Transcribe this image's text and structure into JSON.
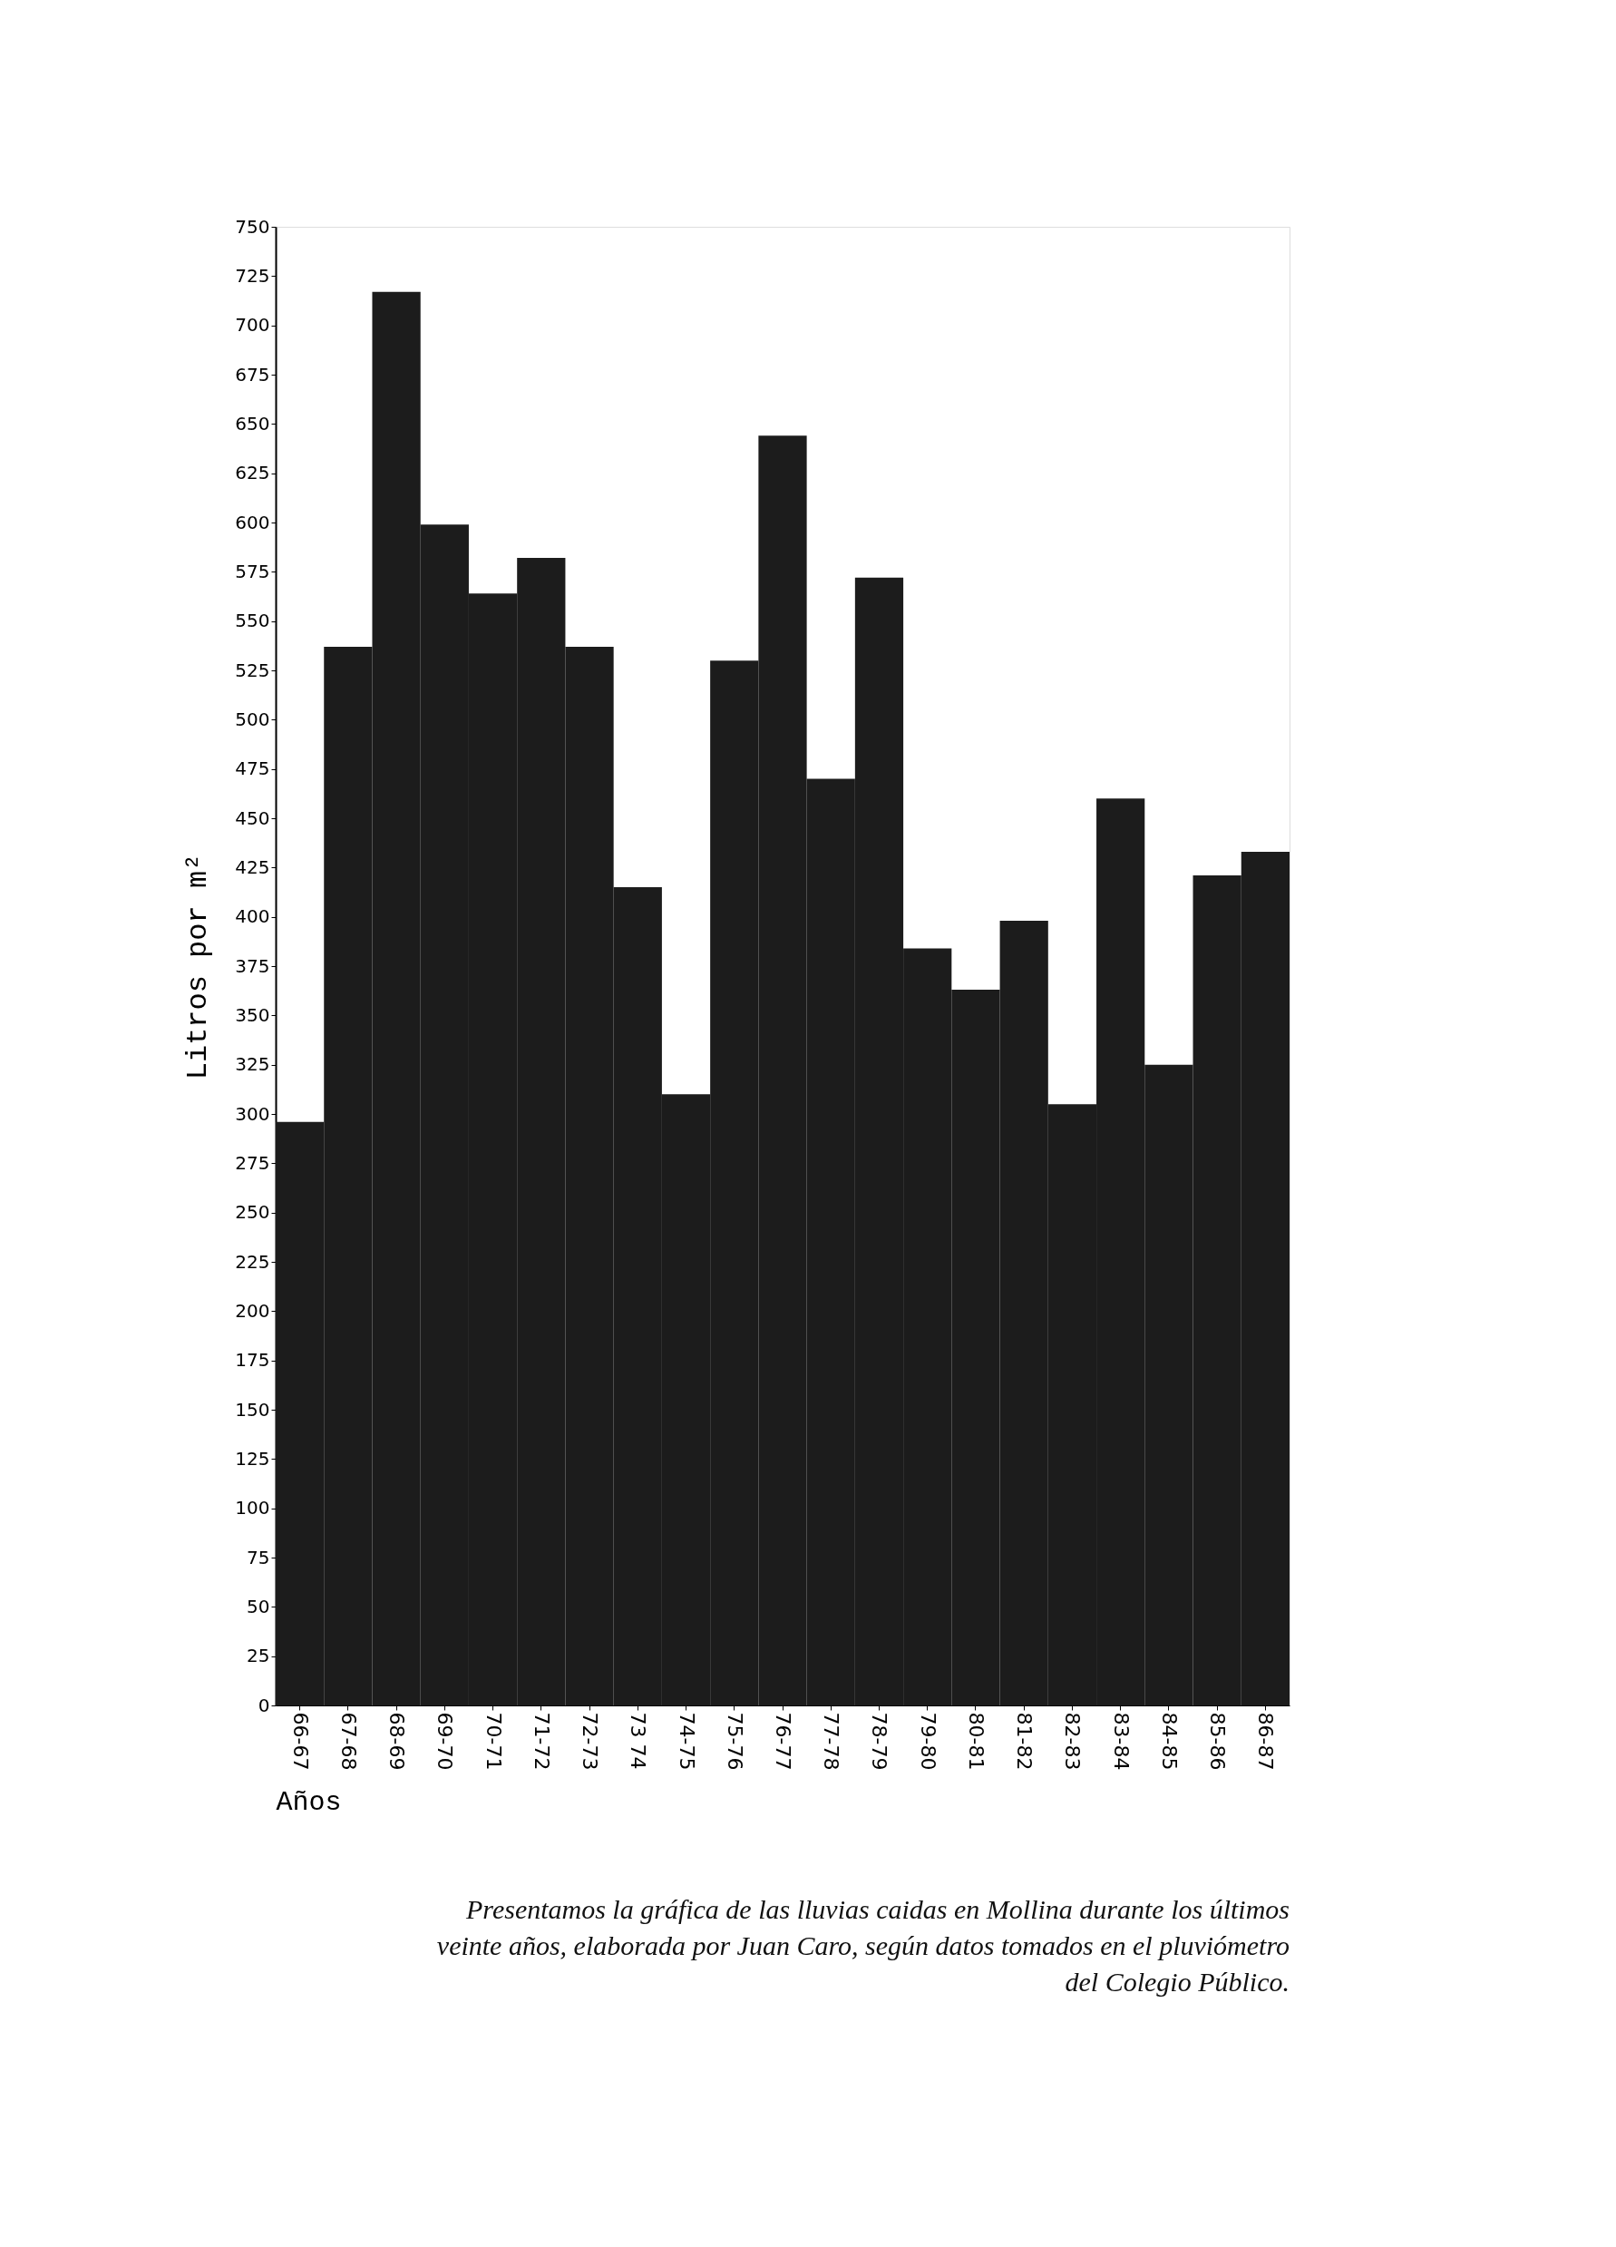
{
  "chart_data": {
    "type": "bar",
    "xlabel": "Años",
    "ylabel": "Litros por m²",
    "categories": [
      "66-67",
      "67-68",
      "68-69",
      "69-70",
      "70-71",
      "71-72",
      "72-73",
      "73 74",
      "74-75",
      "75-76",
      "76-77",
      "77-78",
      "78-79",
      "79-80",
      "80-81",
      "81-82",
      "82-83",
      "83-84",
      "84-85",
      "85-86",
      "86-87"
    ],
    "values": [
      296,
      537,
      717,
      599,
      564,
      582,
      537,
      415,
      310,
      530,
      644,
      470,
      572,
      384,
      363,
      398,
      305,
      460,
      325,
      421,
      433
    ],
    "color": "#1c1c1c",
    "ylim": [
      0,
      750
    ],
    "yticks": [
      0,
      25,
      50,
      75,
      100,
      125,
      150,
      175,
      200,
      225,
      250,
      275,
      300,
      325,
      350,
      375,
      400,
      425,
      450,
      475,
      500,
      525,
      550,
      575,
      600,
      625,
      650,
      675,
      700,
      725,
      750
    ],
    "grid": false,
    "annotations": [
      "Presentamos la gráfica de las lluvias caidas en Mollina durante los últimos veinte años, elaborada por Juan Caro, según datos tomados en el pluviómetro del Colegio Público."
    ]
  }
}
